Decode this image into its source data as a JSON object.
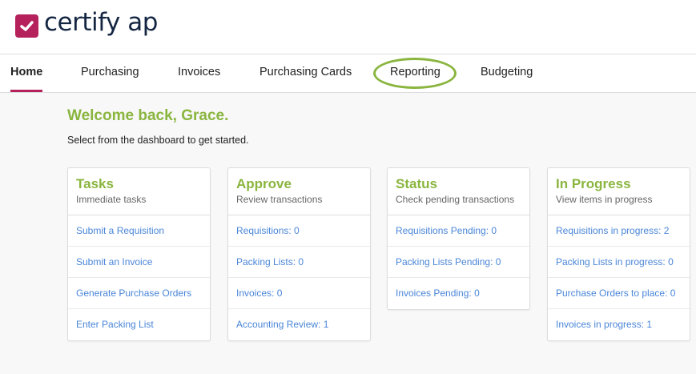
{
  "brand": {
    "name": "certify ap",
    "color": "#b5215a"
  },
  "nav": {
    "items": [
      {
        "label": "Home",
        "active": true
      },
      {
        "label": "Purchasing"
      },
      {
        "label": "Invoices"
      },
      {
        "label": "Purchasing Cards"
      },
      {
        "label": "Reporting",
        "highlighted": true
      },
      {
        "label": "Budgeting"
      }
    ]
  },
  "welcome": {
    "title": "Welcome back, Grace.",
    "subtitle": "Select from the dashboard to get started."
  },
  "accent": "#8ab53f",
  "cards": [
    {
      "title": "Tasks",
      "subtitle": "Immediate tasks",
      "items": [
        "Submit a Requisition",
        "Submit an Invoice",
        "Generate Purchase Orders",
        "Enter Packing List"
      ]
    },
    {
      "title": "Approve",
      "subtitle": "Review transactions",
      "items": [
        "Requisitions: 0",
        "Packing Lists: 0",
        "Invoices: 0",
        "Accounting Review: 1"
      ]
    },
    {
      "title": "Status",
      "subtitle": "Check pending transactions",
      "items": [
        "Requisitions Pending: 0",
        "Packing Lists Pending: 0",
        "Invoices Pending: 0"
      ]
    },
    {
      "title": "In Progress",
      "subtitle": "View items in progress",
      "items": [
        "Requisitions in progress: 2",
        "Packing Lists in progress: 0",
        "Purchase Orders to place: 0",
        "Invoices in progress: 1"
      ]
    }
  ]
}
